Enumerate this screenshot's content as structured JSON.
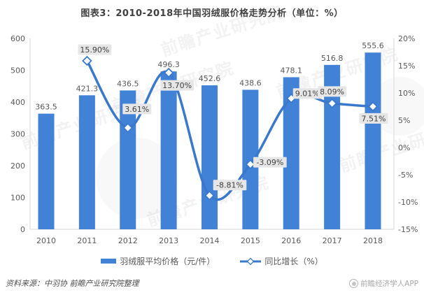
{
  "title": "图表3：2010-2018年中国羽绒服价格走势分析（单位：%）",
  "chart_data": {
    "type": "bar",
    "subtype": "bar+line dual-axis combo",
    "categories": [
      "2010",
      "2011",
      "2012",
      "2013",
      "2014",
      "2015",
      "2016",
      "2017",
      "2018"
    ],
    "series": [
      {
        "name": "羽绒服平均价格（元/件）",
        "type": "bar",
        "axis": "left",
        "values": [
          363.5,
          421.3,
          436.5,
          496.3,
          452.6,
          438.6,
          478.1,
          516.8,
          555.6
        ]
      },
      {
        "name": "同比增长（%）",
        "type": "line",
        "axis": "right",
        "values": [
          null,
          15.9,
          3.61,
          13.7,
          -8.81,
          -3.09,
          9.01,
          8.09,
          7.51
        ],
        "point_labels": [
          null,
          "15.90%",
          "3.61%",
          "13.70%",
          "-8.81%",
          "-3.09%",
          "9.01%",
          "8.09%",
          "7.51%"
        ]
      }
    ],
    "left_axis": {
      "ticks": [
        "600",
        "500",
        "400",
        "300",
        "200",
        "100",
        "0"
      ],
      "range": [
        0,
        600
      ]
    },
    "right_axis": {
      "ticks": [
        "20%",
        "15%",
        "10%",
        "5%",
        "0%",
        "-5%",
        "-10%",
        "-15%"
      ],
      "range": [
        -15,
        20
      ]
    },
    "grid": false,
    "legend_position": "bottom"
  },
  "legend": {
    "bar_label": "羽绒服平均价格（元/件）",
    "line_label": "同比增长（%）"
  },
  "footer": {
    "source": "资料来源：中羽协 前瞻产业研究院整理",
    "app": "前瞻经济学人APP"
  },
  "watermark": "前瞻产业研究院",
  "colors": {
    "bar": "#4181d6",
    "line": "#3a78cc",
    "marker_fill": "#ffffff",
    "label_box_bg": "#e6e6e6",
    "label_box_text": "#3f3f3f",
    "bar_label_text": "#595959",
    "axis_text": "#595959",
    "axis_line": "#d9d9d9",
    "title_text": "#404040"
  }
}
